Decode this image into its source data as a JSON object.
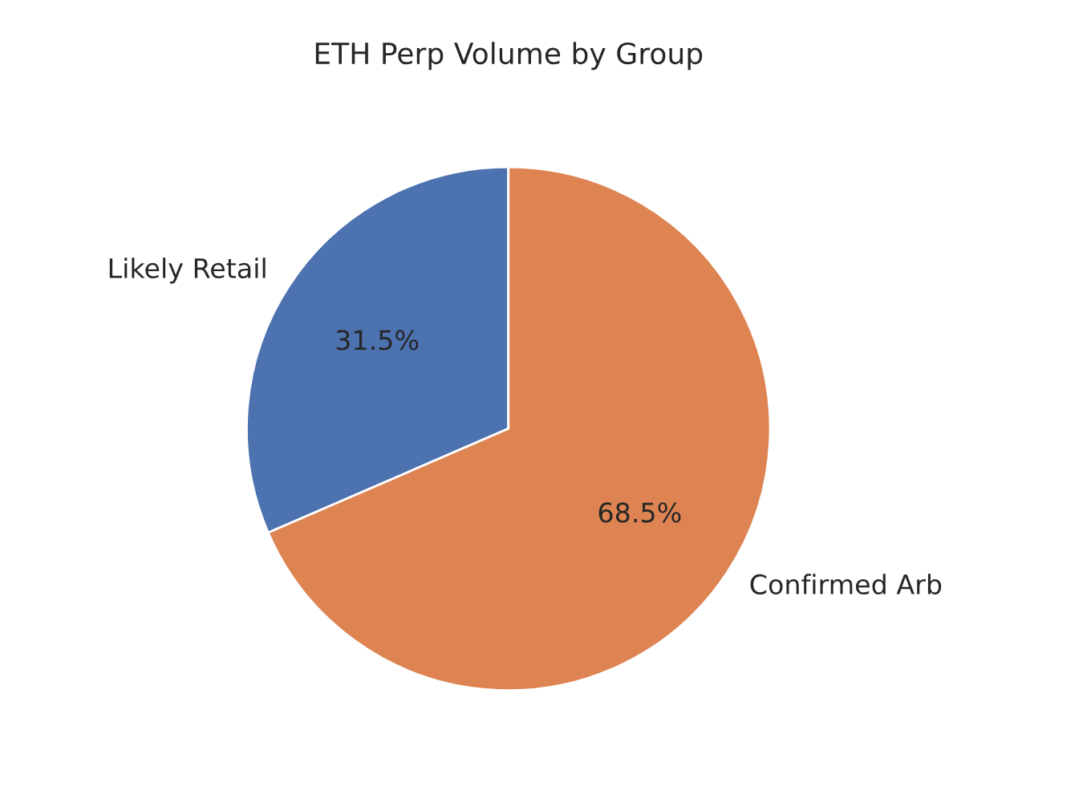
{
  "chart_data": {
    "type": "pie",
    "title": "ETH Perp Volume by Group",
    "categories": [
      "Likely Retail",
      "Confirmed Arb"
    ],
    "values": [
      31.5,
      68.5
    ],
    "colors": [
      "#4c72b0",
      "#dd8452"
    ],
    "value_labels": [
      "31.5%",
      "68.5%"
    ]
  }
}
